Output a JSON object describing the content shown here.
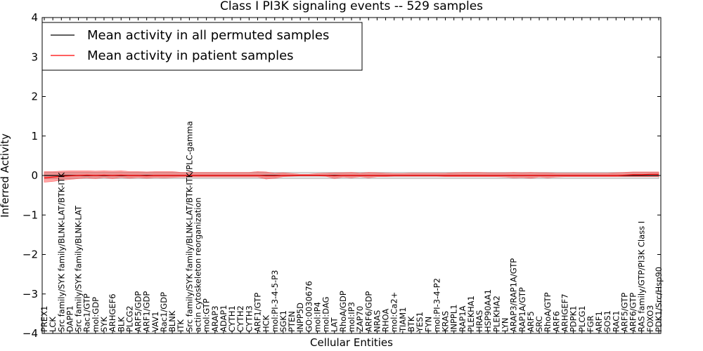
{
  "chart_data": {
    "type": "line",
    "title": "Class I PI3K signaling events -- 529 samples",
    "xlabel": "Cellular Entities",
    "ylabel": "Inferred Activity",
    "ylim": [
      -4,
      4
    ],
    "yticks": [
      "4",
      "3",
      "2",
      "1",
      "0",
      "−1",
      "−2",
      "−3",
      "−4"
    ],
    "grid": false,
    "legend_position": "top-left",
    "categories": [
      "PREX1",
      "LCK",
      "Src family/SYK family/BLNK-LAT/BTK-ITK",
      "DAPP1",
      "Src family/SYK family/BLNK-LAT",
      "Rac1/GTP",
      "mol:GDP",
      "SYK",
      "ARHGEF6",
      "BLK",
      "PLCG2",
      "ARF5/GDP",
      "ARF1/GDP",
      "VAV1",
      "Rac1/GDP",
      "BLNK",
      "ITK",
      "Src family/SYK family/BLNK-LAT/BTK-ITK/PLC-gamma",
      "actin cytoskeleton reorganization",
      "mol:GTP",
      "ARAP3",
      "ADAP1",
      "CYTH1",
      "CYTH2",
      "CYTH3",
      "ARF1/GTP",
      "HCK",
      "mol:PI-3-4-5-P3",
      "SGK1",
      "PTEN",
      "INPP5D",
      "GO:0030676",
      "mol:IP4",
      "mol:DAG",
      "LAT",
      "RhoA/GDP",
      "mol:IP3",
      "ZAP70",
      "ARF6/GDP",
      "NRAS",
      "RHOA",
      "mol:Ca2+",
      "TIAM1",
      "BTK",
      "YES1",
      "FYN",
      "mol:PI-3-4-P2",
      "KRAS",
      "INPPL1",
      "RAP1A",
      "PLEKHA1",
      "HRAS",
      "HSP90AA1",
      "PLEKHA2",
      "LYN",
      "ARAP3/RAP1A/GTP",
      "RAP1A/GTP",
      "ARF5",
      "SRC",
      "RhoA/GTP",
      "ARF6",
      "ARHGEF7",
      "PDPK1",
      "PLCG1",
      "FGR",
      "ARF1",
      "SOS1",
      "RAC1",
      "ARF5/GTP",
      "ARF6/GTP",
      "RAS family/GTP/PI3K Class I",
      "FOXO3",
      "PDK1/Src/Hsp90"
    ],
    "series": [
      {
        "name": "Mean activity in all permuted samples",
        "color": "#000000",
        "values": [
          0.0,
          0.0,
          0.0,
          0.0,
          0.0,
          0.0,
          0.0,
          0.0,
          0.0,
          0.0,
          0.0,
          0.0,
          0.0,
          0.0,
          0.0,
          0.0,
          0.0,
          0.0,
          0.0,
          0.0,
          0.0,
          0.0,
          0.0,
          0.0,
          0.0,
          0.0,
          0.0,
          0.0,
          0.0,
          0.0,
          0.0,
          0.0,
          0.0,
          0.0,
          0.0,
          0.0,
          0.0,
          0.0,
          0.0,
          0.0,
          0.0,
          0.0,
          0.0,
          0.0,
          0.0,
          0.0,
          0.0,
          0.0,
          0.0,
          0.0,
          0.0,
          0.0,
          0.0,
          0.0,
          0.0,
          0.0,
          0.0,
          0.0,
          0.0,
          0.0,
          0.0,
          0.0,
          0.0,
          0.0,
          0.0,
          0.0,
          0.0,
          0.0,
          0.0,
          0.0,
          0.0,
          0.0,
          0.0
        ],
        "band_lower": [
          -0.08,
          -0.08,
          -0.08,
          -0.08,
          -0.08,
          -0.08,
          -0.08,
          -0.08,
          -0.08,
          -0.08,
          -0.08,
          -0.08,
          -0.08,
          -0.08,
          -0.08,
          -0.08,
          -0.08,
          -0.08,
          -0.08,
          -0.08,
          -0.08,
          -0.08,
          -0.08,
          -0.08,
          -0.08,
          -0.08,
          -0.08,
          -0.08,
          -0.08,
          -0.08,
          -0.08,
          -0.08,
          -0.08,
          -0.08,
          -0.08,
          -0.08,
          -0.08,
          -0.08,
          -0.08,
          -0.08,
          -0.08,
          -0.08,
          -0.08,
          -0.08,
          -0.08,
          -0.08,
          -0.08,
          -0.08,
          -0.08,
          -0.08,
          -0.08,
          -0.08,
          -0.08,
          -0.08,
          -0.08,
          -0.08,
          -0.08,
          -0.08,
          -0.08,
          -0.08,
          -0.08,
          -0.08,
          -0.08,
          -0.08,
          -0.08,
          -0.08,
          -0.08,
          -0.08,
          -0.08,
          -0.08,
          -0.08,
          -0.08,
          -0.08
        ],
        "band_upper": [
          0.08,
          0.08,
          0.08,
          0.08,
          0.08,
          0.08,
          0.08,
          0.08,
          0.08,
          0.08,
          0.08,
          0.08,
          0.08,
          0.08,
          0.08,
          0.08,
          0.08,
          0.08,
          0.08,
          0.08,
          0.08,
          0.08,
          0.08,
          0.08,
          0.08,
          0.08,
          0.08,
          0.08,
          0.08,
          0.08,
          0.08,
          0.08,
          0.08,
          0.08,
          0.08,
          0.08,
          0.08,
          0.08,
          0.08,
          0.08,
          0.08,
          0.08,
          0.08,
          0.08,
          0.08,
          0.08,
          0.08,
          0.08,
          0.08,
          0.08,
          0.08,
          0.08,
          0.08,
          0.08,
          0.08,
          0.08,
          0.08,
          0.08,
          0.08,
          0.08,
          0.08,
          0.08,
          0.08,
          0.08,
          0.08,
          0.08,
          0.08,
          0.08,
          0.08,
          0.08,
          0.08,
          0.08,
          0.08
        ]
      },
      {
        "name": "Mean activity in patient samples",
        "color": "#ff0000",
        "values": [
          -0.06,
          -0.04,
          -0.02,
          -0.01,
          0.0,
          0.01,
          0.0,
          0.01,
          0.0,
          0.01,
          0.0,
          0.0,
          -0.01,
          0.0,
          0.0,
          0.0,
          0.0,
          0.0,
          0.0,
          0.0,
          0.0,
          0.0,
          0.0,
          0.0,
          0.0,
          0.0,
          -0.01,
          -0.01,
          0.0,
          0.0,
          0.0,
          0.0,
          0.0,
          0.0,
          -0.01,
          0.0,
          0.0,
          0.0,
          0.0,
          0.0,
          0.0,
          0.0,
          0.0,
          0.0,
          0.0,
          0.0,
          0.0,
          0.0,
          0.0,
          0.0,
          0.0,
          0.0,
          0.0,
          0.0,
          0.0,
          0.0,
          0.0,
          0.0,
          0.0,
          0.0,
          0.0,
          0.0,
          0.0,
          0.0,
          0.0,
          0.0,
          0.0,
          0.0,
          0.01,
          0.02,
          0.02,
          0.03,
          0.03
        ],
        "band_lower": [
          -0.17,
          -0.15,
          -0.12,
          -0.1,
          -0.08,
          -0.06,
          -0.08,
          -0.05,
          -0.08,
          -0.05,
          -0.07,
          -0.05,
          -0.07,
          -0.05,
          -0.06,
          -0.05,
          -0.04,
          -0.04,
          -0.04,
          -0.04,
          -0.04,
          -0.04,
          -0.04,
          -0.04,
          -0.04,
          -0.04,
          -0.09,
          -0.07,
          -0.03,
          -0.02,
          -0.01,
          -0.01,
          -0.01,
          -0.02,
          -0.08,
          -0.04,
          -0.06,
          -0.03,
          -0.06,
          -0.03,
          -0.03,
          -0.02,
          -0.02,
          -0.02,
          -0.02,
          -0.02,
          -0.02,
          -0.03,
          -0.03,
          -0.03,
          -0.03,
          -0.03,
          -0.03,
          -0.03,
          -0.04,
          -0.06,
          -0.05,
          -0.07,
          -0.04,
          -0.06,
          -0.04,
          -0.03,
          -0.03,
          -0.03,
          -0.03,
          -0.03,
          -0.03,
          -0.03,
          -0.03,
          -0.03,
          -0.03,
          -0.03,
          -0.03
        ],
        "band_upper": [
          0.1,
          0.1,
          0.11,
          0.12,
          0.12,
          0.12,
          0.11,
          0.12,
          0.11,
          0.12,
          0.1,
          0.1,
          0.09,
          0.1,
          0.1,
          0.1,
          0.08,
          0.08,
          0.08,
          0.08,
          0.08,
          0.08,
          0.08,
          0.08,
          0.08,
          0.1,
          0.09,
          0.06,
          0.07,
          0.05,
          0.03,
          0.03,
          0.05,
          0.06,
          0.07,
          0.07,
          0.08,
          0.06,
          0.08,
          0.07,
          0.06,
          0.05,
          0.05,
          0.06,
          0.06,
          0.06,
          0.06,
          0.06,
          0.07,
          0.08,
          0.08,
          0.08,
          0.07,
          0.07,
          0.07,
          0.08,
          0.07,
          0.08,
          0.07,
          0.07,
          0.06,
          0.06,
          0.06,
          0.06,
          0.06,
          0.06,
          0.06,
          0.07,
          0.08,
          0.09,
          0.09,
          0.09,
          0.09
        ]
      }
    ]
  }
}
